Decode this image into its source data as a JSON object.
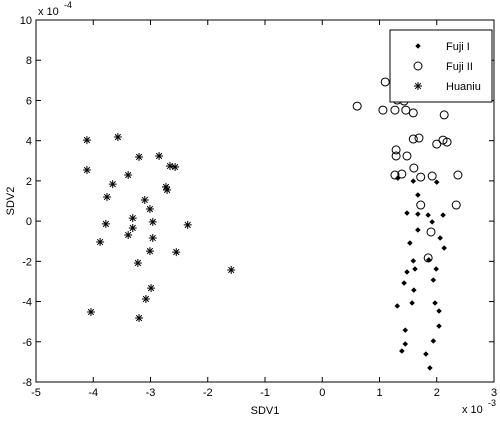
{
  "chart_data": {
    "type": "scatter",
    "x_label": "SDV1",
    "y_label": "SDV2",
    "x_multiplier": {
      "base": "x 10",
      "exponent": "-3"
    },
    "y_multiplier": {
      "base": "x 10",
      "exponent": "-4"
    },
    "xlim": [
      -5,
      3
    ],
    "ylim": [
      -8,
      10
    ],
    "xticks": [
      -5,
      -4,
      -3,
      -2,
      -1,
      0,
      1,
      2,
      3
    ],
    "yticks": [
      -8,
      -6,
      -4,
      -2,
      0,
      2,
      4,
      6,
      8,
      10
    ],
    "grid": false,
    "legend": "upper right",
    "series": [
      {
        "name": "Fuji I",
        "color": "#000000",
        "marker": "diamond",
        "x": [
          1.32,
          1.59,
          1.67,
          2.0,
          1.48,
          1.67,
          1.85,
          2.11,
          1.92,
          1.67,
          2.06,
          1.53,
          2.13,
          1.59,
          1.86,
          1.62,
          1.99,
          1.48,
          1.94,
          1.43,
          1.6,
          1.31,
          1.57,
          1.97,
          2.04,
          1.45,
          2.04,
          1.94,
          1.45,
          1.39,
          1.81,
          1.88
        ],
        "values": [
          2.14,
          1.99,
          1.3,
          1.94,
          0.4,
          0.35,
          0.3,
          0.3,
          -0.04,
          -0.44,
          -0.84,
          -1.09,
          -1.34,
          -1.98,
          -1.93,
          -2.38,
          -2.38,
          -2.53,
          -2.93,
          -3.08,
          -3.43,
          -4.22,
          -4.07,
          -4.07,
          -4.47,
          -5.42,
          -5.22,
          -5.96,
          -6.11,
          -6.46,
          -6.61,
          -7.3
        ]
      },
      {
        "name": "Fuji II",
        "color": "#000000",
        "marker": "circle",
        "x": [
          1.1,
          1.31,
          1.43,
          1.06,
          1.27,
          1.46,
          1.59,
          2.13,
          0.61,
          1.29,
          1.29,
          1.48,
          1.69,
          1.59,
          2.11,
          2.18,
          2.0,
          1.27,
          1.39,
          1.72,
          1.92,
          2.37,
          1.72,
          2.34,
          1.9,
          1.85,
          1.6
        ],
        "values": [
          6.92,
          6.02,
          5.97,
          5.52,
          5.52,
          5.52,
          5.38,
          5.28,
          5.72,
          3.54,
          3.24,
          3.24,
          4.13,
          4.08,
          4.03,
          3.93,
          3.83,
          2.29,
          2.34,
          2.19,
          2.24,
          2.29,
          0.8,
          0.8,
          -0.54,
          -1.83,
          2.64
        ]
      },
      {
        "name": "Huaniu",
        "color": "#000000",
        "marker": "asterisk",
        "x": [
          -4.11,
          -4.11,
          -3.57,
          -3.66,
          -3.76,
          -3.78,
          -3.88,
          -3.39,
          -3.2,
          -2.85,
          -2.66,
          -2.57,
          -2.71,
          -2.73,
          -3.1,
          -3.01,
          -3.31,
          -3.31,
          -2.96,
          -2.35,
          -3.39,
          -2.96,
          -3.01,
          -2.55,
          -3.22,
          -1.59,
          -2.99,
          -3.08,
          -4.04,
          -3.2
        ],
        "values": [
          4.03,
          2.54,
          4.18,
          1.84,
          1.2,
          -0.14,
          -1.04,
          2.29,
          3.19,
          3.24,
          2.74,
          2.69,
          1.55,
          1.7,
          1.05,
          0.6,
          0.15,
          -0.34,
          -0.04,
          -0.19,
          -0.69,
          -0.84,
          -1.49,
          -1.54,
          -2.08,
          -2.43,
          -3.33,
          -3.87,
          -4.52,
          -4.82
        ]
      }
    ]
  }
}
